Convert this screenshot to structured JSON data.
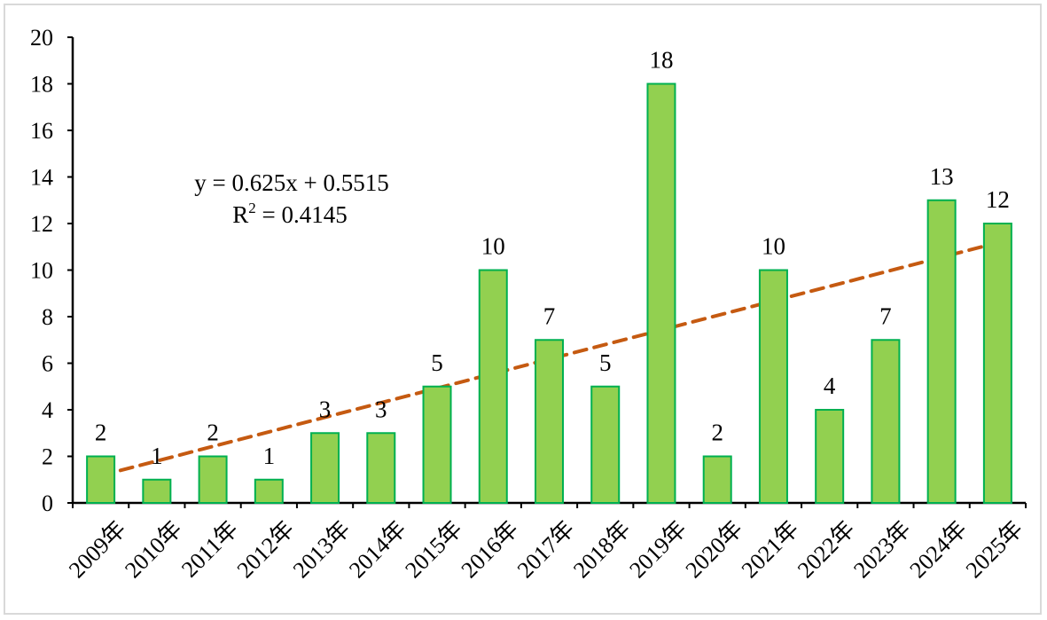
{
  "chart_data": {
    "type": "bar",
    "categories": [
      "2009年",
      "2010年",
      "2011年",
      "2012年",
      "2013年",
      "2014年",
      "2015年",
      "2016年",
      "2017年",
      "2018年",
      "2019年",
      "2020年",
      "2021年",
      "2022年",
      "2023年",
      "2024年",
      "2025年"
    ],
    "values": [
      2,
      1,
      2,
      1,
      3,
      3,
      5,
      10,
      7,
      5,
      18,
      2,
      10,
      4,
      7,
      13,
      12
    ],
    "ylim": [
      0,
      20
    ],
    "yticks": [
      0,
      2,
      4,
      6,
      8,
      10,
      12,
      14,
      16,
      18,
      20
    ],
    "bar_color": "#92d050",
    "bar_edge_color": "#00b050",
    "trendline": {
      "type": "linear",
      "slope": 0.625,
      "intercept": 0.5515,
      "color": "#c55a11",
      "equation": "y = 0.625x + 0.5515",
      "r2_prefix": "R",
      "r2_sup": "2",
      "r2_suffix": " = 0.4145"
    },
    "grid": false,
    "legend": "none"
  }
}
